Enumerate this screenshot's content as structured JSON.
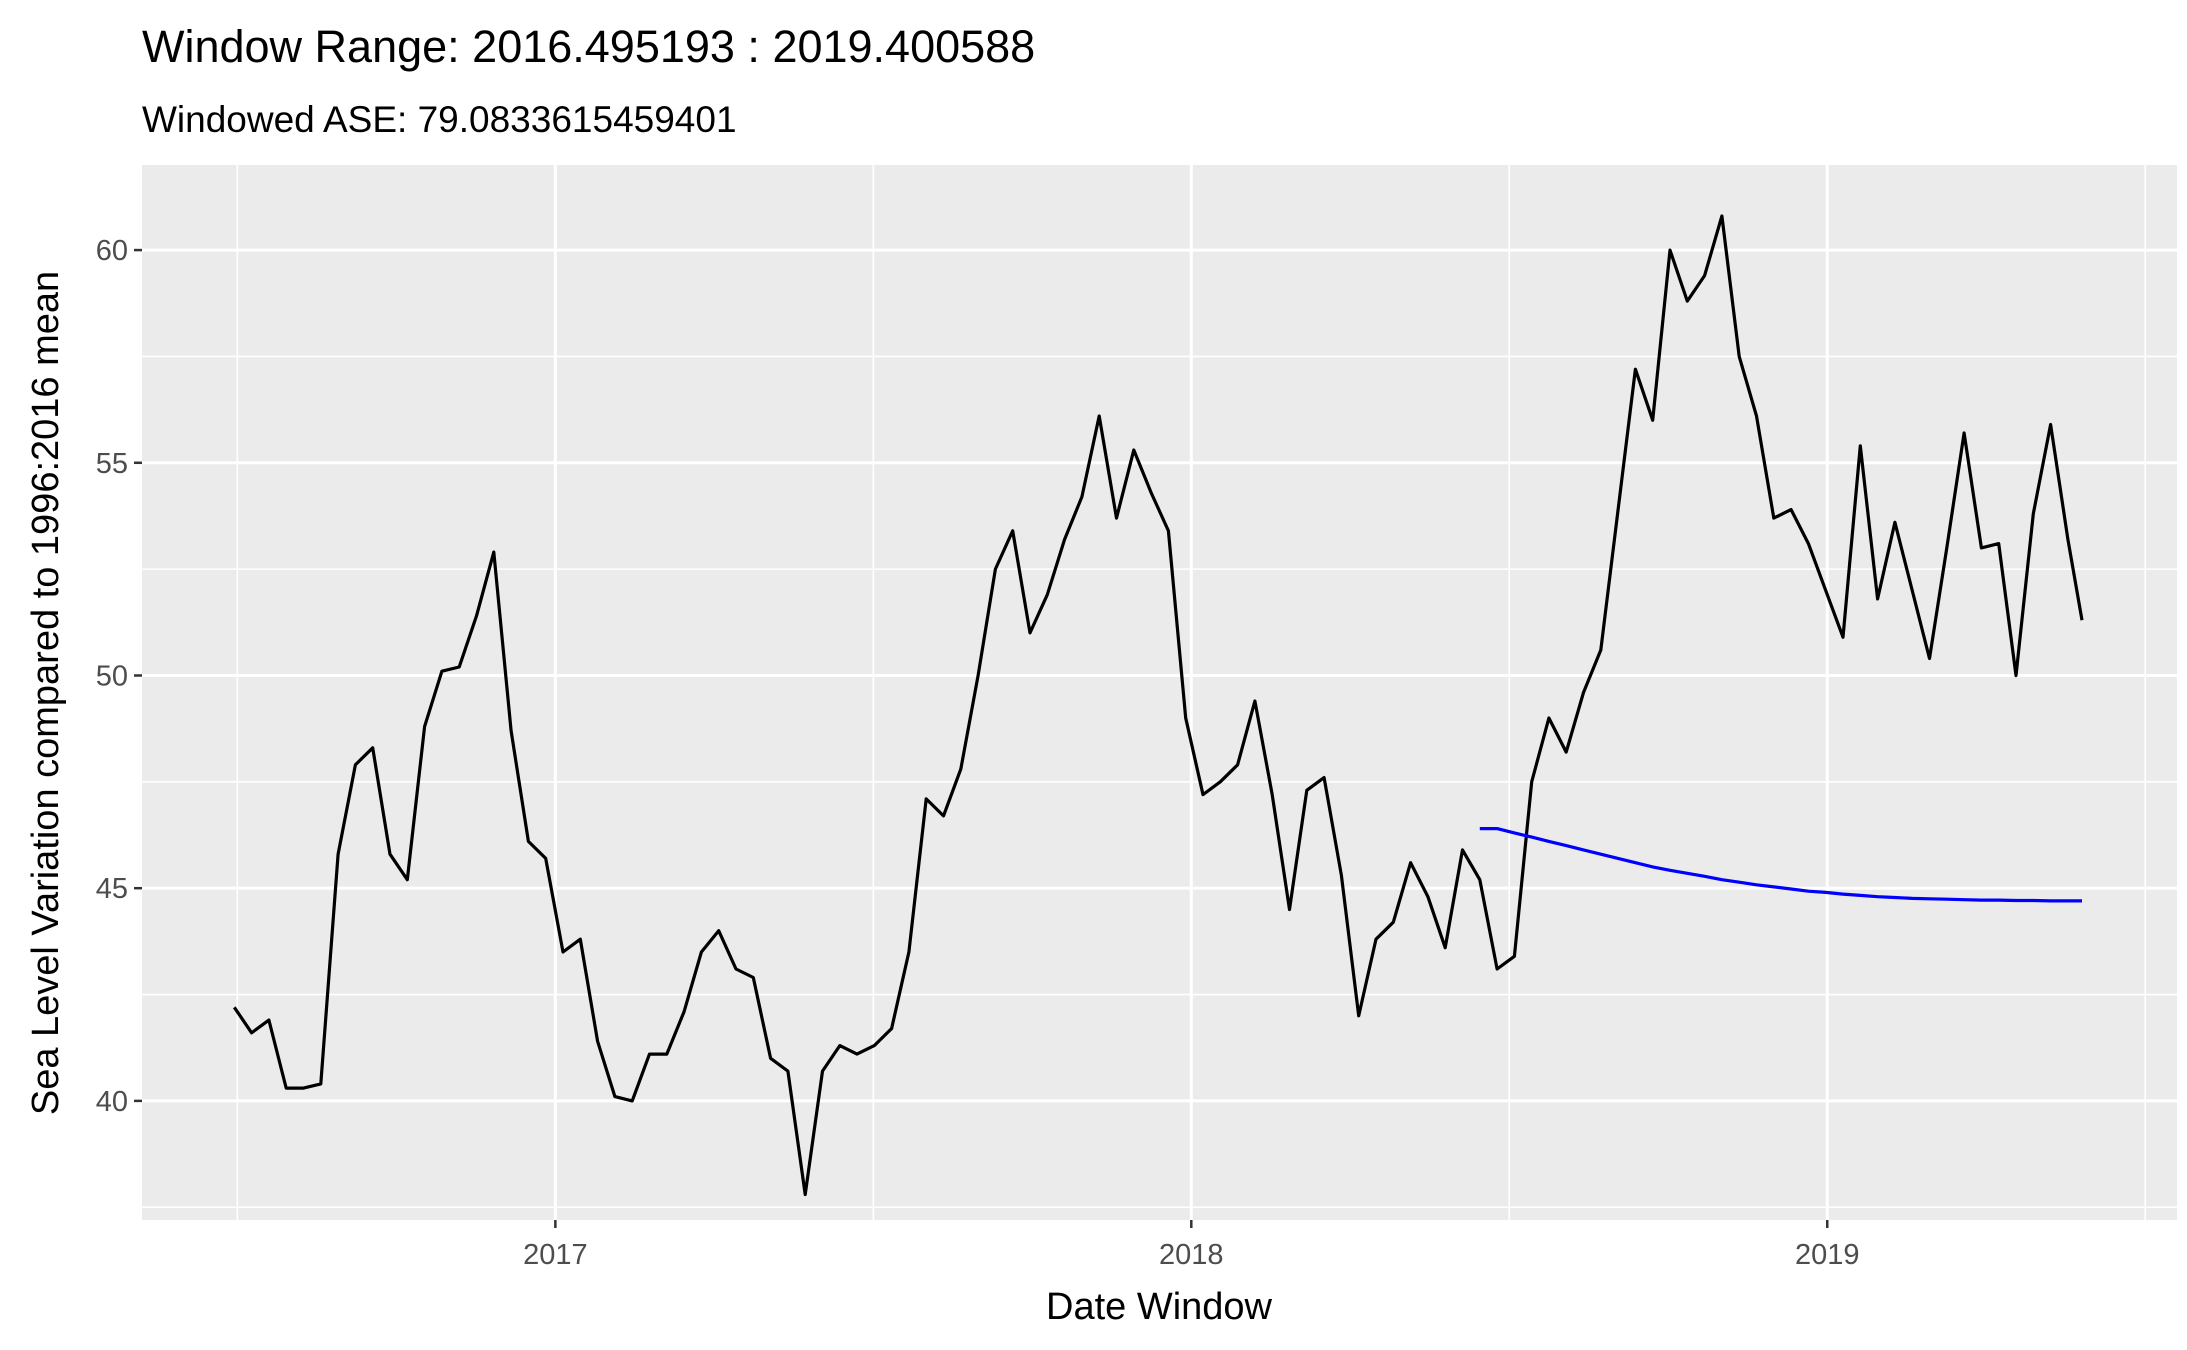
{
  "chart_data": {
    "type": "line",
    "title": "Window Range: 2016.495193 : 2019.400588",
    "subtitle": "Windowed ASE: 79.0833615459401",
    "xlabel": "Date Window",
    "ylabel": "Sea Level Variation compared to 1996:2016 mean",
    "xlim": [
      2016.35,
      2019.55
    ],
    "ylim": [
      37.2,
      62.0
    ],
    "x_ticks": [
      2017,
      2018,
      2019
    ],
    "x_tick_labels": [
      "2017",
      "2018",
      "2019"
    ],
    "y_ticks": [
      40,
      45,
      50,
      55,
      60
    ],
    "y_tick_labels": [
      "40",
      "45",
      "50",
      "55",
      "60"
    ],
    "grid": true,
    "series": [
      {
        "color": "#000000",
        "x": [
          2016.4952,
          2016.5224,
          2016.5496,
          2016.5768,
          2016.604,
          2016.6312,
          2016.6584,
          2016.6856,
          2016.7128,
          2016.74,
          2016.7672,
          2016.7944,
          2016.8216,
          2016.8488,
          2016.876,
          2016.9032,
          2016.9304,
          2016.9576,
          2016.9848,
          2017.012,
          2017.0392,
          2017.0664,
          2017.0936,
          2017.1208,
          2017.148,
          2017.1752,
          2017.2024,
          2017.2296,
          2017.2568,
          2017.284,
          2017.3112,
          2017.3384,
          2017.3656,
          2017.3928,
          2017.42,
          2017.4472,
          2017.4744,
          2017.5016,
          2017.5288,
          2017.556,
          2017.5832,
          2017.6104,
          2017.6376,
          2017.6648,
          2017.692,
          2017.7192,
          2017.7464,
          2017.7736,
          2017.8008,
          2017.828,
          2017.8552,
          2017.8824,
          2017.9096,
          2017.9368,
          2017.964,
          2017.9912,
          2018.0184,
          2018.0456,
          2018.0728,
          2018.1,
          2018.1272,
          2018.1544,
          2018.1816,
          2018.2088,
          2018.236,
          2018.2632,
          2018.2904,
          2018.3176,
          2018.3448,
          2018.372,
          2018.3992,
          2018.4264,
          2018.4536,
          2018.4808,
          2018.508,
          2018.5352,
          2018.5624,
          2018.5896,
          2018.6168,
          2018.644,
          2018.6712,
          2018.6984,
          2018.7256,
          2018.7528,
          2018.78,
          2018.8072,
          2018.8344,
          2018.8616,
          2018.8888,
          2018.916,
          2018.9432,
          2018.9704,
          2018.9976,
          2019.0248,
          2019.052,
          2019.0792,
          2019.1064,
          2019.1336,
          2019.1608,
          2019.188,
          2019.2152,
          2019.2424,
          2019.2696,
          2019.2968,
          2019.324,
          2019.3512,
          2019.3784,
          2019.4006
        ],
        "values": [
          42.2,
          41.6,
          41.9,
          40.3,
          40.3,
          40.4,
          45.8,
          47.9,
          48.3,
          45.8,
          45.2,
          48.8,
          50.1,
          50.2,
          51.4,
          52.9,
          48.7,
          46.1,
          45.7,
          43.5,
          43.8,
          41.4,
          40.1,
          40.0,
          41.1,
          41.1,
          42.1,
          43.5,
          44.0,
          43.1,
          42.9,
          41.0,
          40.7,
          37.8,
          40.7,
          41.3,
          41.1,
          41.3,
          41.7,
          43.5,
          47.1,
          46.7,
          47.8,
          50.0,
          52.5,
          53.4,
          51.0,
          51.9,
          53.2,
          54.2,
          56.1,
          53.7,
          55.3,
          54.3,
          53.4,
          49.0,
          47.2,
          47.5,
          47.9,
          49.4,
          47.2,
          44.5,
          47.3,
          47.6,
          45.3,
          42.0,
          43.8,
          44.2,
          45.6,
          44.8,
          43.6,
          45.9,
          45.2,
          43.1,
          43.4,
          47.5,
          49.0,
          48.2,
          49.6,
          50.6,
          53.9,
          57.2,
          56.0,
          60.0,
          58.8,
          59.4,
          60.8,
          57.5,
          56.1,
          53.7,
          53.9,
          53.1,
          52.0,
          50.9,
          55.4,
          51.8,
          53.6,
          52.0,
          50.4,
          53.0,
          55.7,
          53.0,
          53.1,
          50.0,
          53.8,
          55.9,
          53.2,
          51.3
        ]
      },
      {
        "color": "#0000ff",
        "x": [
          2018.4536,
          2018.4808,
          2018.508,
          2018.5352,
          2018.5624,
          2018.5896,
          2018.6168,
          2018.644,
          2018.6712,
          2018.6984,
          2018.7256,
          2018.7528,
          2018.78,
          2018.8072,
          2018.8344,
          2018.8616,
          2018.8888,
          2018.916,
          2018.9432,
          2018.9704,
          2018.9976,
          2019.0248,
          2019.052,
          2019.0792,
          2019.1064,
          2019.1336,
          2019.1608,
          2019.188,
          2019.2152,
          2019.2424,
          2019.2696,
          2019.2968,
          2019.324,
          2019.3512,
          2019.3784,
          2019.4006
        ],
        "values": [
          46.4,
          46.4,
          46.3,
          46.2,
          46.1,
          46.0,
          45.9,
          45.8,
          45.7,
          45.6,
          45.5,
          45.42,
          45.35,
          45.28,
          45.2,
          45.14,
          45.08,
          45.03,
          44.98,
          44.93,
          44.9,
          44.86,
          44.83,
          44.8,
          44.78,
          44.76,
          44.75,
          44.74,
          44.73,
          44.72,
          44.72,
          44.71,
          44.71,
          44.7,
          44.7,
          44.7
        ]
      }
    ]
  }
}
